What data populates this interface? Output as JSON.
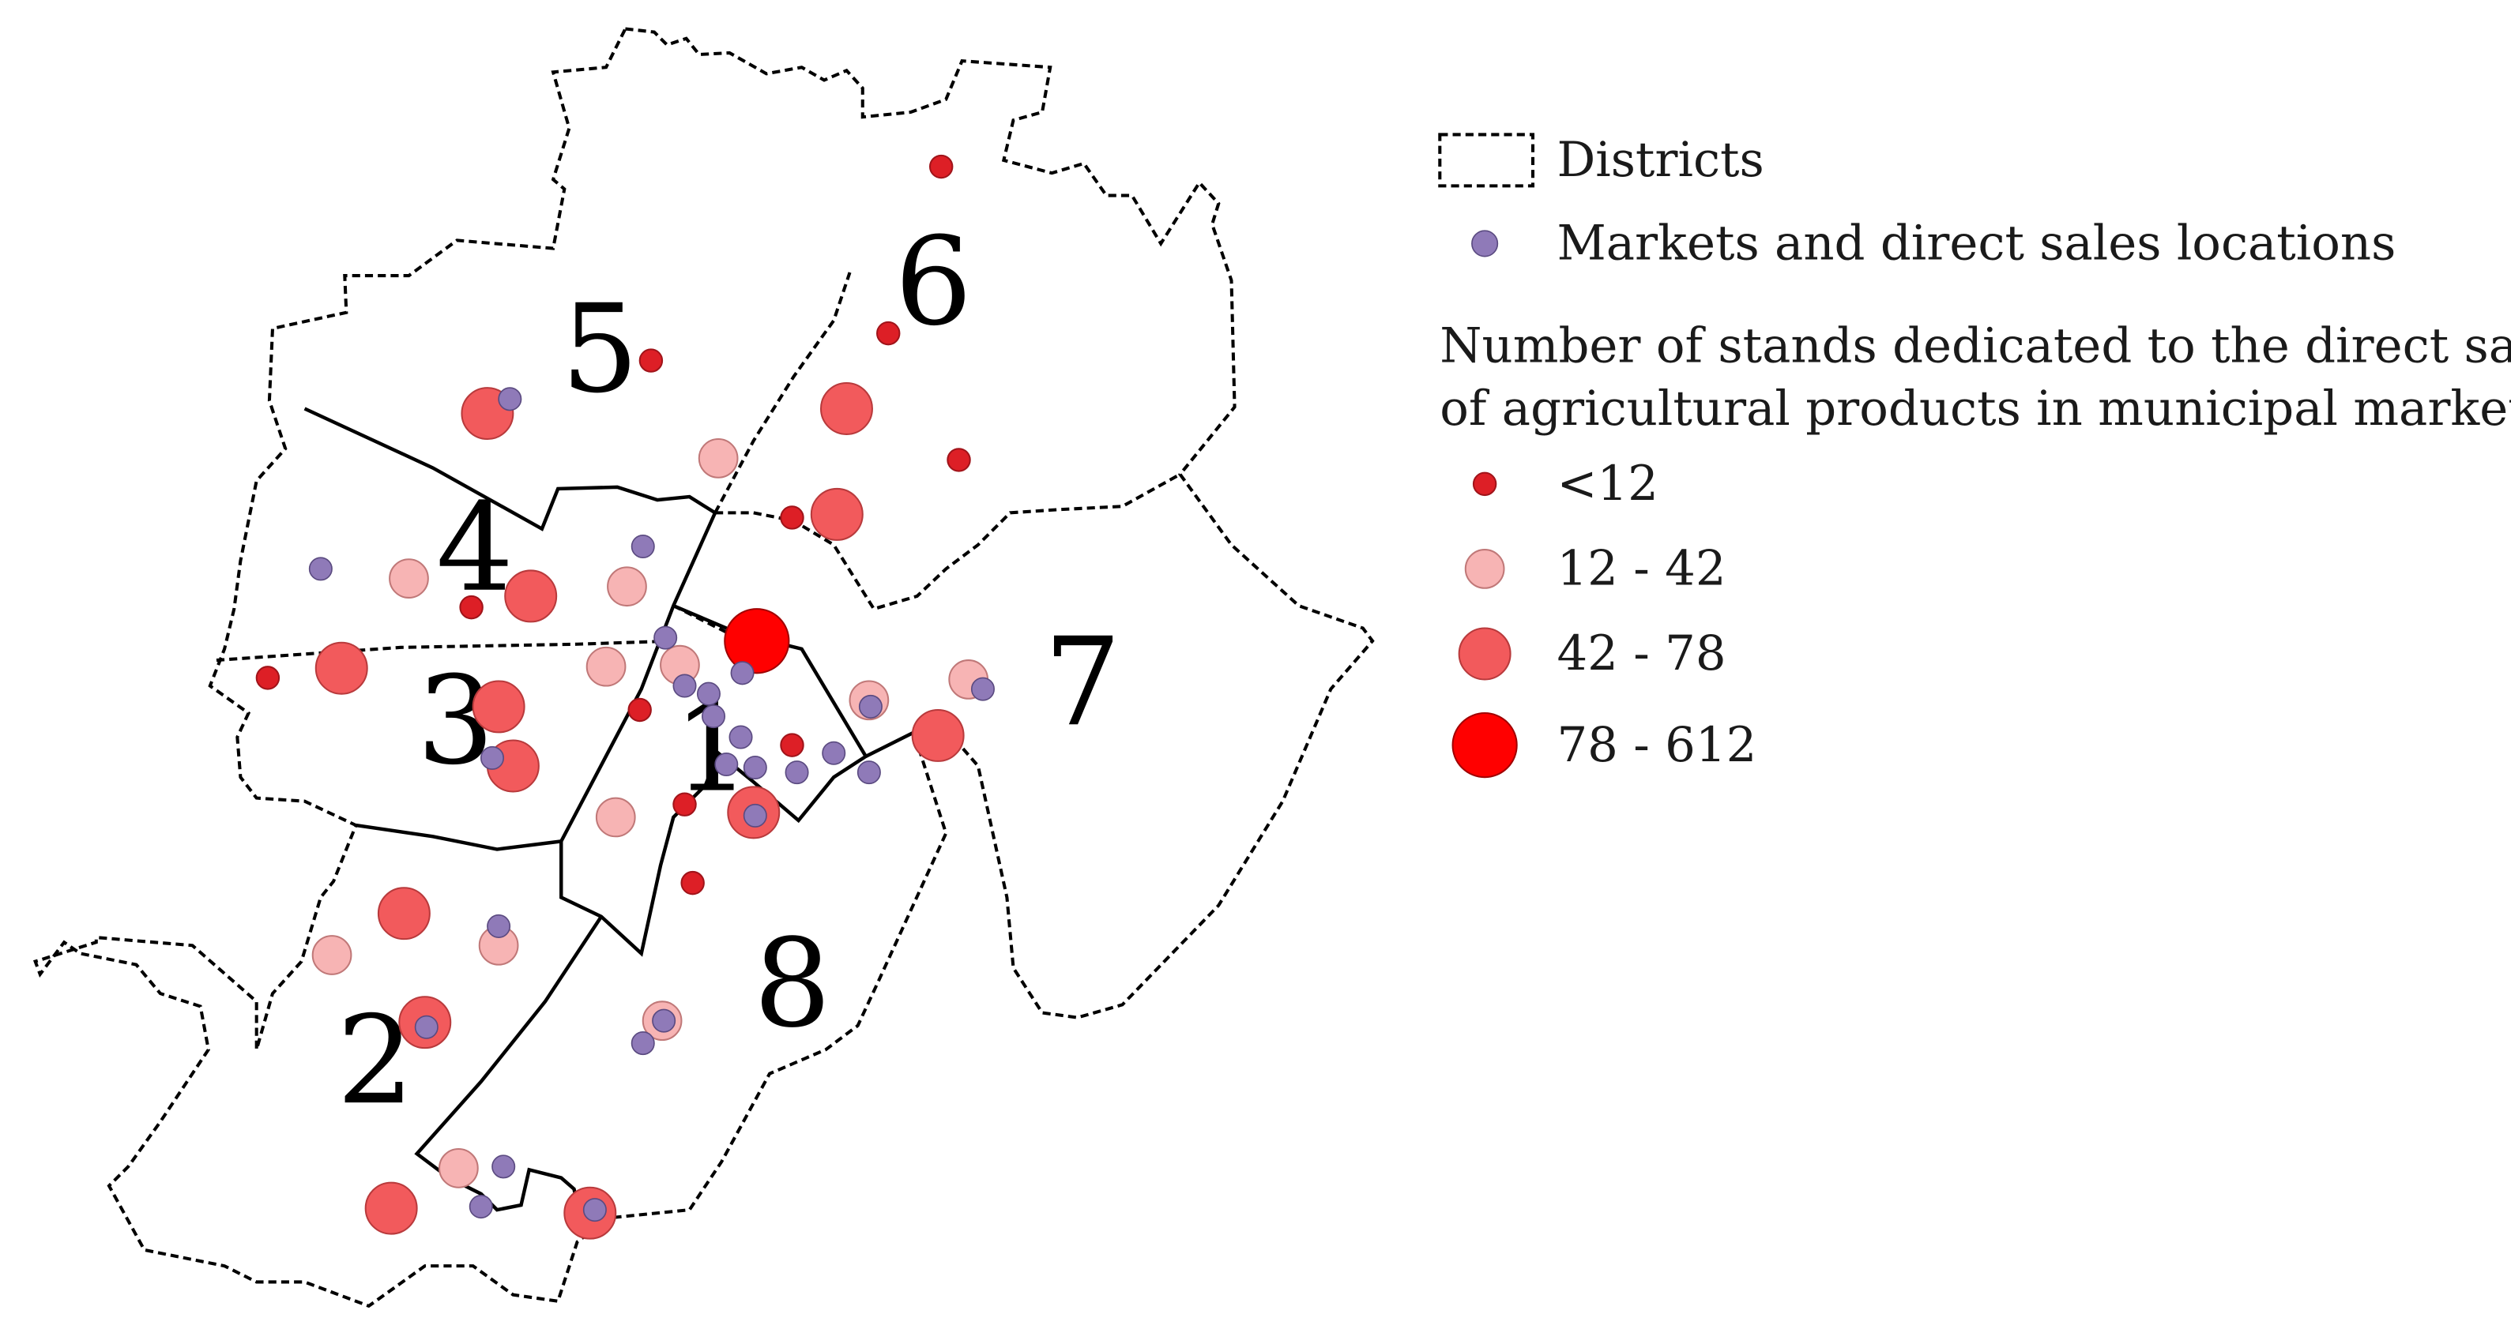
{
  "legend": {
    "districts_label": "Districts",
    "markets_label": "Markets and direct sales locations",
    "stands_title_line1": "Number of stands dedicated to the direct sale",
    "stands_title_line2": "of agricultural products in municipal markets",
    "classes": [
      {
        "label": "<12",
        "color": "#dd1f26",
        "stroke": "#b0121a"
      },
      {
        "label": "12 - 42",
        "color": "#f7b4b4",
        "stroke": "#c07878"
      },
      {
        "label": "42 - 78",
        "color": "#f25a5c",
        "stroke": "#b83a3c"
      },
      {
        "label": "78 - 612",
        "color": "#ff0000",
        "stroke": "#b00000"
      }
    ],
    "market_color": "#8f7ab8"
  },
  "districts": [
    {
      "label": "1"
    },
    {
      "label": "2"
    },
    {
      "label": "3"
    },
    {
      "label": "4"
    },
    {
      "label": "5"
    },
    {
      "label": "6"
    },
    {
      "label": "7"
    },
    {
      "label": "8"
    }
  ]
}
